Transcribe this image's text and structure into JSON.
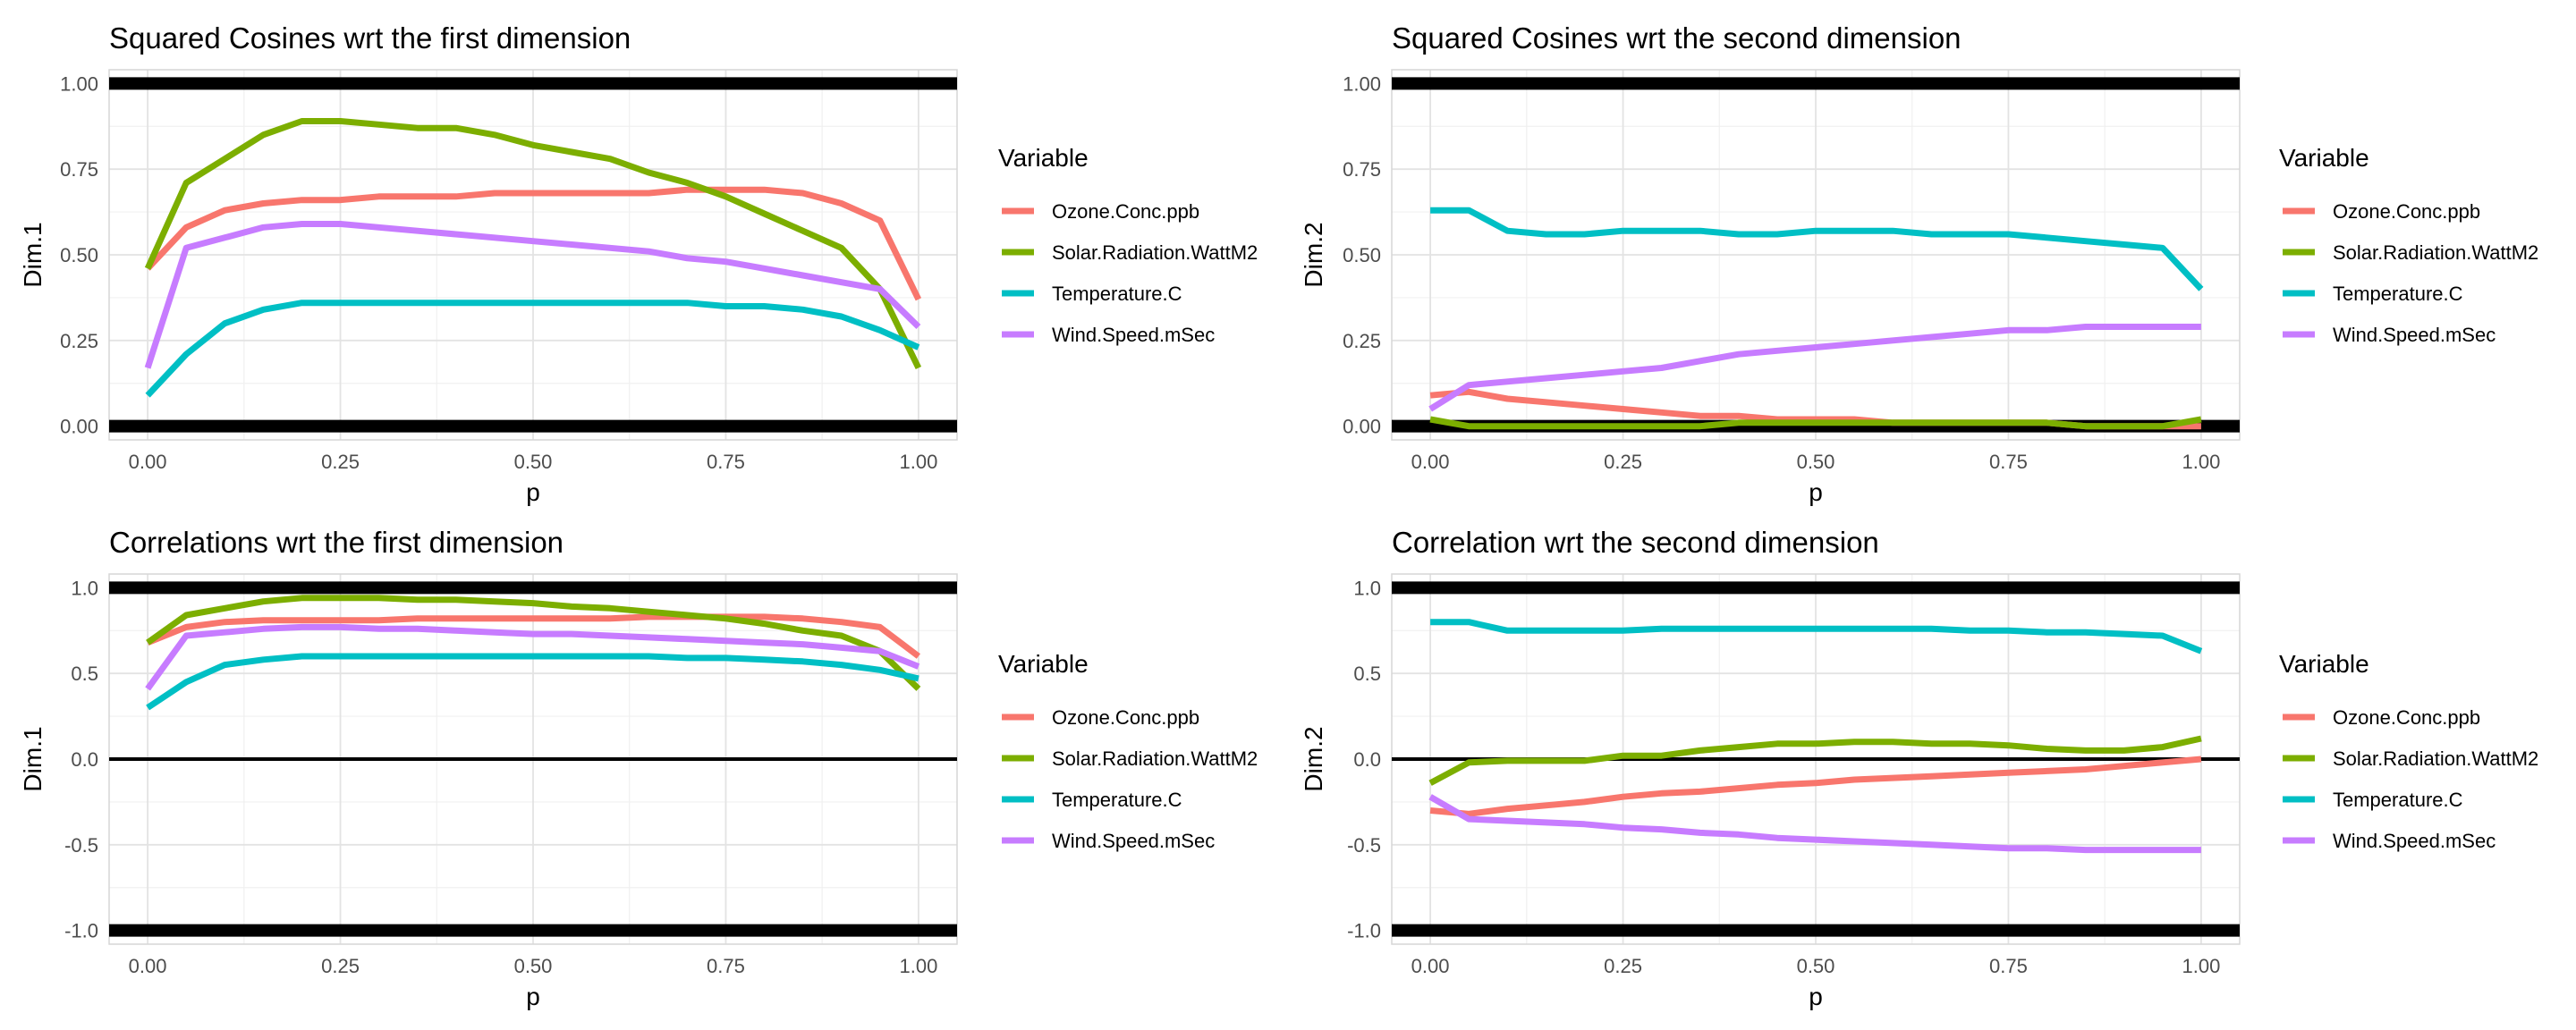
{
  "chart_data": [
    {
      "type": "line",
      "title": "Squared Cosines wrt the first dimension",
      "xlabel": "p",
      "ylabel": "Dim.1",
      "xlim": [
        -0.05,
        1.05
      ],
      "ylim": [
        -0.04,
        1.04
      ],
      "x_ticks": [
        0.0,
        0.25,
        0.5,
        0.75,
        1.0
      ],
      "x_tick_labels": [
        "0.00",
        "0.25",
        "0.50",
        "0.75",
        "1.00"
      ],
      "y_ticks": [
        0.0,
        0.25,
        0.5,
        0.75,
        1.0
      ],
      "y_tick_labels": [
        "0.00",
        "0.25",
        "0.50",
        "0.75",
        "1.00"
      ],
      "reference_lines": [
        {
          "y": 1.0,
          "weight": "thick"
        },
        {
          "y": 0.0,
          "weight": "thick"
        }
      ],
      "grid": true,
      "legend": {
        "title": "Variable",
        "position": "right"
      },
      "x": [
        0,
        0.05,
        0.1,
        0.15,
        0.2,
        0.25,
        0.3,
        0.35,
        0.4,
        0.45,
        0.5,
        0.55,
        0.6,
        0.65,
        0.7,
        0.75,
        0.8,
        0.85,
        0.9,
        0.95,
        1.0
      ],
      "series": [
        {
          "name": "Ozone.Conc.ppb",
          "color": "#F8766D",
          "values": [
            0.46,
            0.58,
            0.63,
            0.65,
            0.66,
            0.66,
            0.67,
            0.67,
            0.67,
            0.68,
            0.68,
            0.68,
            0.68,
            0.68,
            0.69,
            0.69,
            0.69,
            0.68,
            0.65,
            0.6,
            0.37
          ]
        },
        {
          "name": "Solar.Radiation.WattM2",
          "color": "#7CAE00",
          "values": [
            0.46,
            0.71,
            0.78,
            0.85,
            0.89,
            0.89,
            0.88,
            0.87,
            0.87,
            0.85,
            0.82,
            0.8,
            0.78,
            0.74,
            0.71,
            0.67,
            0.62,
            0.57,
            0.52,
            0.4,
            0.17
          ]
        },
        {
          "name": "Temperature.C",
          "color": "#00BFC4",
          "values": [
            0.09,
            0.21,
            0.3,
            0.34,
            0.36,
            0.36,
            0.36,
            0.36,
            0.36,
            0.36,
            0.36,
            0.36,
            0.36,
            0.36,
            0.36,
            0.35,
            0.35,
            0.34,
            0.32,
            0.28,
            0.23
          ]
        },
        {
          "name": "Wind.Speed.mSec",
          "color": "#C77CFF",
          "values": [
            0.17,
            0.52,
            0.55,
            0.58,
            0.59,
            0.59,
            0.58,
            0.57,
            0.56,
            0.55,
            0.54,
            0.53,
            0.52,
            0.51,
            0.49,
            0.48,
            0.46,
            0.44,
            0.42,
            0.4,
            0.29
          ]
        }
      ]
    },
    {
      "type": "line",
      "title": "Squared Cosines wrt the second dimension",
      "xlabel": "p",
      "ylabel": "Dim.2",
      "xlim": [
        -0.05,
        1.05
      ],
      "ylim": [
        -0.04,
        1.04
      ],
      "x_ticks": [
        0.0,
        0.25,
        0.5,
        0.75,
        1.0
      ],
      "x_tick_labels": [
        "0.00",
        "0.25",
        "0.50",
        "0.75",
        "1.00"
      ],
      "y_ticks": [
        0.0,
        0.25,
        0.5,
        0.75,
        1.0
      ],
      "y_tick_labels": [
        "0.00",
        "0.25",
        "0.50",
        "0.75",
        "1.00"
      ],
      "reference_lines": [
        {
          "y": 1.0,
          "weight": "thick"
        },
        {
          "y": 0.0,
          "weight": "thick"
        }
      ],
      "grid": true,
      "legend": {
        "title": "Variable",
        "position": "right"
      },
      "x": [
        0,
        0.05,
        0.1,
        0.15,
        0.2,
        0.25,
        0.3,
        0.35,
        0.4,
        0.45,
        0.5,
        0.55,
        0.6,
        0.65,
        0.7,
        0.75,
        0.8,
        0.85,
        0.9,
        0.95,
        1.0
      ],
      "series": [
        {
          "name": "Ozone.Conc.ppb",
          "color": "#F8766D",
          "values": [
            0.09,
            0.1,
            0.08,
            0.07,
            0.06,
            0.05,
            0.04,
            0.03,
            0.03,
            0.02,
            0.02,
            0.02,
            0.01,
            0.01,
            0.01,
            0.01,
            0.01,
            0.0,
            0.0,
            0.0,
            0.0
          ]
        },
        {
          "name": "Solar.Radiation.WattM2",
          "color": "#7CAE00",
          "values": [
            0.02,
            0.0,
            0.0,
            0.0,
            0.0,
            0.0,
            0.0,
            0.0,
            0.01,
            0.01,
            0.01,
            0.01,
            0.01,
            0.01,
            0.01,
            0.01,
            0.01,
            0.0,
            0.0,
            0.0,
            0.02
          ]
        },
        {
          "name": "Temperature.C",
          "color": "#00BFC4",
          "values": [
            0.63,
            0.63,
            0.57,
            0.56,
            0.56,
            0.57,
            0.57,
            0.57,
            0.56,
            0.56,
            0.57,
            0.57,
            0.57,
            0.56,
            0.56,
            0.56,
            0.55,
            0.54,
            0.53,
            0.52,
            0.4
          ]
        },
        {
          "name": "Wind.Speed.mSec",
          "color": "#C77CFF",
          "values": [
            0.05,
            0.12,
            0.13,
            0.14,
            0.15,
            0.16,
            0.17,
            0.19,
            0.21,
            0.22,
            0.23,
            0.24,
            0.25,
            0.26,
            0.27,
            0.28,
            0.28,
            0.29,
            0.29,
            0.29,
            0.29
          ]
        }
      ]
    },
    {
      "type": "line",
      "title": "Correlations wrt the first dimension",
      "xlabel": "p",
      "ylabel": "Dim.1",
      "xlim": [
        -0.05,
        1.05
      ],
      "ylim": [
        -1.08,
        1.08
      ],
      "x_ticks": [
        0.0,
        0.25,
        0.5,
        0.75,
        1.0
      ],
      "x_tick_labels": [
        "0.00",
        "0.25",
        "0.50",
        "0.75",
        "1.00"
      ],
      "y_ticks": [
        -1.0,
        -0.5,
        0.0,
        0.5,
        1.0
      ],
      "y_tick_labels": [
        "-1.0",
        "-0.5",
        "0.0",
        "0.5",
        "1.0"
      ],
      "reference_lines": [
        {
          "y": 1.0,
          "weight": "thick"
        },
        {
          "y": 0.0,
          "weight": "thin"
        },
        {
          "y": -1.0,
          "weight": "thick"
        }
      ],
      "grid": true,
      "legend": {
        "title": "Variable",
        "position": "right"
      },
      "x": [
        0,
        0.05,
        0.1,
        0.15,
        0.2,
        0.25,
        0.3,
        0.35,
        0.4,
        0.45,
        0.5,
        0.55,
        0.6,
        0.65,
        0.7,
        0.75,
        0.8,
        0.85,
        0.9,
        0.95,
        1.0
      ],
      "series": [
        {
          "name": "Ozone.Conc.ppb",
          "color": "#F8766D",
          "values": [
            0.68,
            0.77,
            0.8,
            0.81,
            0.81,
            0.81,
            0.81,
            0.82,
            0.82,
            0.82,
            0.82,
            0.82,
            0.82,
            0.83,
            0.83,
            0.83,
            0.83,
            0.82,
            0.8,
            0.77,
            0.6
          ]
        },
        {
          "name": "Solar.Radiation.WattM2",
          "color": "#7CAE00",
          "values": [
            0.68,
            0.84,
            0.88,
            0.92,
            0.94,
            0.94,
            0.94,
            0.93,
            0.93,
            0.92,
            0.91,
            0.89,
            0.88,
            0.86,
            0.84,
            0.82,
            0.79,
            0.75,
            0.72,
            0.63,
            0.41
          ]
        },
        {
          "name": "Temperature.C",
          "color": "#00BFC4",
          "values": [
            0.3,
            0.45,
            0.55,
            0.58,
            0.6,
            0.6,
            0.6,
            0.6,
            0.6,
            0.6,
            0.6,
            0.6,
            0.6,
            0.6,
            0.59,
            0.59,
            0.58,
            0.57,
            0.55,
            0.52,
            0.47
          ]
        },
        {
          "name": "Wind.Speed.mSec",
          "color": "#C77CFF",
          "values": [
            0.41,
            0.72,
            0.74,
            0.76,
            0.77,
            0.77,
            0.76,
            0.76,
            0.75,
            0.74,
            0.73,
            0.73,
            0.72,
            0.71,
            0.7,
            0.69,
            0.68,
            0.67,
            0.65,
            0.63,
            0.54
          ]
        }
      ]
    },
    {
      "type": "line",
      "title": "Correlation wrt the second dimension",
      "xlabel": "p",
      "ylabel": "Dim.2",
      "xlim": [
        -0.05,
        1.05
      ],
      "ylim": [
        -1.08,
        1.08
      ],
      "x_ticks": [
        0.0,
        0.25,
        0.5,
        0.75,
        1.0
      ],
      "x_tick_labels": [
        "0.00",
        "0.25",
        "0.50",
        "0.75",
        "1.00"
      ],
      "y_ticks": [
        -1.0,
        -0.5,
        0.0,
        0.5,
        1.0
      ],
      "y_tick_labels": [
        "-1.0",
        "-0.5",
        "0.0",
        "0.5",
        "1.0"
      ],
      "reference_lines": [
        {
          "y": 1.0,
          "weight": "thick"
        },
        {
          "y": 0.0,
          "weight": "thin"
        },
        {
          "y": -1.0,
          "weight": "thick"
        }
      ],
      "grid": true,
      "legend": {
        "title": "Variable",
        "position": "right"
      },
      "x": [
        0,
        0.05,
        0.1,
        0.15,
        0.2,
        0.25,
        0.3,
        0.35,
        0.4,
        0.45,
        0.5,
        0.55,
        0.6,
        0.65,
        0.7,
        0.75,
        0.8,
        0.85,
        0.9,
        0.95,
        1.0
      ],
      "series": [
        {
          "name": "Ozone.Conc.ppb",
          "color": "#F8766D",
          "values": [
            -0.3,
            -0.32,
            -0.29,
            -0.27,
            -0.25,
            -0.22,
            -0.2,
            -0.19,
            -0.17,
            -0.15,
            -0.14,
            -0.12,
            -0.11,
            -0.1,
            -0.09,
            -0.08,
            -0.07,
            -0.06,
            -0.04,
            -0.02,
            0.0
          ]
        },
        {
          "name": "Solar.Radiation.WattM2",
          "color": "#7CAE00",
          "values": [
            -0.14,
            -0.02,
            -0.01,
            -0.01,
            -0.01,
            0.02,
            0.02,
            0.05,
            0.07,
            0.09,
            0.09,
            0.1,
            0.1,
            0.09,
            0.09,
            0.08,
            0.06,
            0.05,
            0.05,
            0.07,
            0.12
          ]
        },
        {
          "name": "Temperature.C",
          "color": "#00BFC4",
          "values": [
            0.8,
            0.8,
            0.75,
            0.75,
            0.75,
            0.75,
            0.76,
            0.76,
            0.76,
            0.76,
            0.76,
            0.76,
            0.76,
            0.76,
            0.75,
            0.75,
            0.74,
            0.74,
            0.73,
            0.72,
            0.63
          ]
        },
        {
          "name": "Wind.Speed.mSec",
          "color": "#C77CFF",
          "values": [
            -0.22,
            -0.35,
            -0.36,
            -0.37,
            -0.38,
            -0.4,
            -0.41,
            -0.43,
            -0.44,
            -0.46,
            -0.47,
            -0.48,
            -0.49,
            -0.5,
            -0.51,
            -0.52,
            -0.52,
            -0.53,
            -0.53,
            -0.53,
            -0.53
          ]
        }
      ]
    }
  ]
}
